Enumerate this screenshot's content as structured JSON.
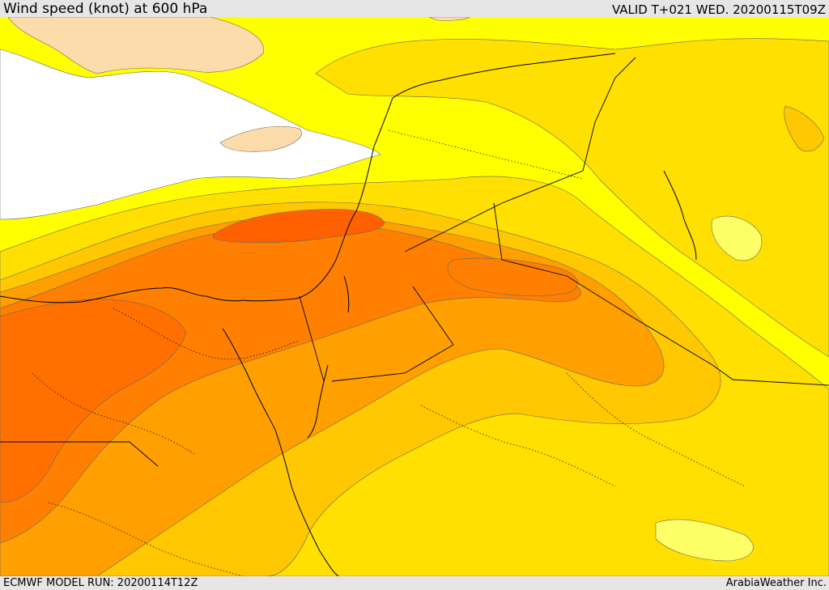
{
  "header": {
    "title": "Wind speed (knot) at 600 hPa",
    "valid": "VALID T+021 WED. 20200115T09Z"
  },
  "footer": {
    "model_run": "ECMWF MODEL RUN: 20200114T12Z",
    "credit": "ArabiaWeather Inc."
  },
  "colors": {
    "calm": "#ffffff",
    "light": "#fcdcaa",
    "band_yellow": "#ffff00",
    "band_gold": "#ffe000",
    "band_amber": "#ffc800",
    "band_orange": "#ffa000",
    "band_deep_orange": "#ff8000",
    "band_red_orange": "#ff6000",
    "coastline": "#000000"
  },
  "icons": [
    "coastline-lines",
    "border-lines"
  ]
}
